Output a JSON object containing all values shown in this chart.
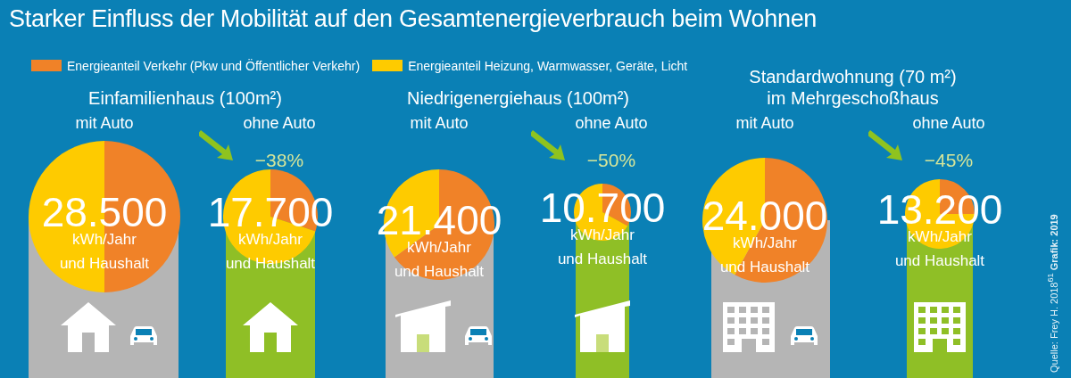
{
  "chart_data": [
    {
      "type": "other",
      "title": "Starker Einfluss der Mobilität auf den Gesamtenergieverbrauch beim Wohnen",
      "annotations": [
        "Quelle: Frey H. 2018$^{61}$",
        "Grafik: 2019"
      ]
    },
    {
      "type": "pie",
      "title": "Einfamilienhaus (100m²)",
      "subtitle": "mit Auto",
      "categories": [
        "Energieanteil Verkehr (Pkw und Öffentlicher Verkehr)",
        "Energieanteil Heizung, Warmwasser, Geräte, Licht"
      ],
      "values": [
        50,
        50
      ],
      "colors": [
        "#f08228",
        "#fecb00"
      ],
      "legend": "top",
      "annotations": [
        "28.500",
        "kWh/Jahr",
        "und Haushalt"
      ]
    },
    {
      "type": "pie",
      "subtitle": "ohne Auto",
      "values": [
        30,
        70
      ],
      "colors": [
        "#f08228",
        "#fecb00"
      ],
      "annotations": [
        "−38%",
        "17.700",
        "kWh/Jahr",
        "und Haushalt"
      ]
    },
    {
      "type": "pie",
      "title": "Niedrigenergiehaus (100m²)",
      "subtitle": "mit Auto",
      "values": [
        65,
        35
      ],
      "colors": [
        "#f08228",
        "#fecb00"
      ],
      "annotations": [
        "21.400",
        "kWh/Jahr",
        "und Haushalt"
      ]
    },
    {
      "type": "pie",
      "subtitle": "ohne Auto",
      "values": [
        33,
        67
      ],
      "colors": [
        "#f08228",
        "#fecb00"
      ],
      "annotations": [
        "−50%",
        "10.700",
        "kWh/Jahr",
        "und Haushalt"
      ]
    },
    {
      "type": "pie",
      "title": "Standardwohnung (70 m²) im Mehrgeschoßhaus",
      "subtitle": "mit Auto",
      "values": [
        58,
        42
      ],
      "colors": [
        "#f08228",
        "#fecb00"
      ],
      "annotations": [
        "24.000",
        "kWh/Jahr",
        "und Haushalt"
      ]
    },
    {
      "type": "pie",
      "subtitle": "ohne Auto",
      "values": [
        25,
        75
      ],
      "colors": [
        "#f08228",
        "#fecb00"
      ],
      "annotations": [
        "−45%",
        "13.200",
        "kWh/Jahr",
        "und Haushalt"
      ]
    }
  ]
}
